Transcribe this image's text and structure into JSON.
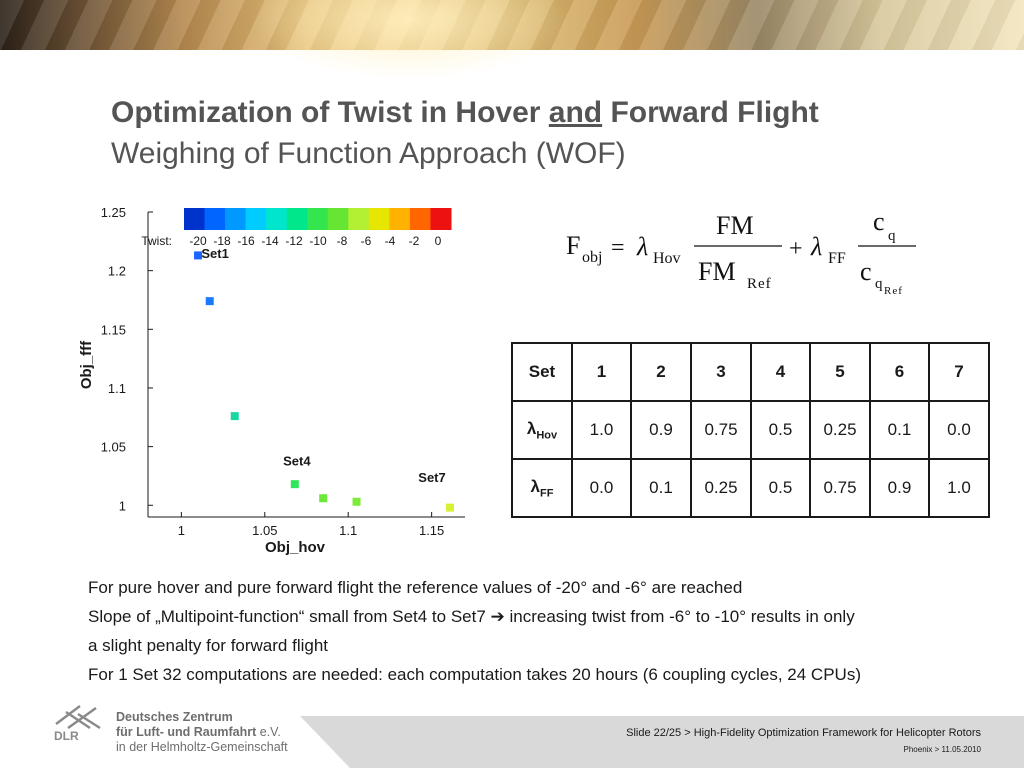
{
  "slide": {
    "title_a": "Optimization of Twist in Hover ",
    "title_u": "and",
    "title_b": " Forward Flight",
    "subtitle": "Weighing of Function Approach (WOF)"
  },
  "chart_data": {
    "type": "scatter",
    "xlabel": "Obj_hov",
    "ylabel": "Obj_fff",
    "xlim": [
      0.98,
      1.17
    ],
    "ylim": [
      0.99,
      1.25
    ],
    "x_ticks": [
      "1",
      "1.05",
      "1.1",
      "1.15"
    ],
    "y_ticks": [
      "1",
      "1.05",
      "1.1",
      "1.15",
      "1.2",
      "1.25"
    ],
    "colorbar": {
      "label": "Twist:",
      "ticks": [
        "-20",
        "-18",
        "-16",
        "-14",
        "-12",
        "-10",
        "-8",
        "-6",
        "-4",
        "-2",
        "0"
      ],
      "colors": [
        "#0033cc",
        "#0066ff",
        "#0099ff",
        "#00ccff",
        "#00e6cc",
        "#00e68a",
        "#33e64d",
        "#66e633",
        "#b3f033",
        "#e6e600",
        "#ffb300",
        "#ff6600",
        "#ee1111"
      ]
    },
    "points": [
      {
        "x": 1.01,
        "y": 1.213,
        "color": "#1a66ff"
      },
      {
        "x": 1.017,
        "y": 1.174,
        "color": "#1a7aff"
      },
      {
        "x": 1.032,
        "y": 1.076,
        "color": "#1ad6a0"
      },
      {
        "x": 1.068,
        "y": 1.018,
        "color": "#2ee65a"
      },
      {
        "x": 1.085,
        "y": 1.006,
        "color": "#6be83a"
      },
      {
        "x": 1.105,
        "y": 1.003,
        "color": "#7fea3a"
      },
      {
        "x": 1.161,
        "y": 0.998,
        "color": "#d9f033"
      }
    ],
    "annotations": [
      {
        "text": "Set1",
        "x": 1.012,
        "y": 1.211
      },
      {
        "text": "Set4",
        "x": 1.061,
        "y": 1.034
      },
      {
        "text": "Set7",
        "x": 1.142,
        "y": 1.02
      }
    ]
  },
  "formula": {
    "F": "F",
    "obj": "obj",
    "eq": "=",
    "lambda": "λ",
    "hov": "Hov",
    "fm": "FM",
    "ref": "Ref",
    "plus": "+",
    "ff": "FF",
    "c": "c",
    "q": "q"
  },
  "table": {
    "corner": "Set",
    "sets": [
      "1",
      "2",
      "3",
      "4",
      "5",
      "6",
      "7"
    ],
    "rows": [
      {
        "lam": "λ",
        "sub": "Hov",
        "values": [
          "1.0",
          "0.9",
          "0.75",
          "0.5",
          "0.25",
          "0.1",
          "0.0"
        ]
      },
      {
        "lam": "λ",
        "sub": "FF",
        "values": [
          "0.0",
          "0.1",
          "0.25",
          "0.5",
          "0.75",
          "0.9",
          "1.0"
        ]
      }
    ]
  },
  "notes": {
    "line1": "For pure hover and pure forward flight the reference values of -20° and -6° are reached",
    "line2a": "Slope of „Multipoint-function“ small from Set4 to Set7 ",
    "arrow": "➔",
    "line2b": " increasing twist from -6° to -10° results in only",
    "line3": "a slight penalty for forward flight",
    "line4": "For 1 Set 32 computations are needed: each computation takes 20 hours (6 coupling cycles, 24 CPUs)"
  },
  "footer": {
    "dlr": "DLR",
    "org1": "Deutsches Zentrum",
    "org2a": "für Luft- und Raumfahrt ",
    "org2b": "e.V.",
    "org3": "in der Helmholtz-Gemeinschaft",
    "slide_info": "Slide 22/25 > High-Fidelity Optimization Framework for Helicopter Rotors",
    "event": "Phoenix > 11.05.2010"
  }
}
